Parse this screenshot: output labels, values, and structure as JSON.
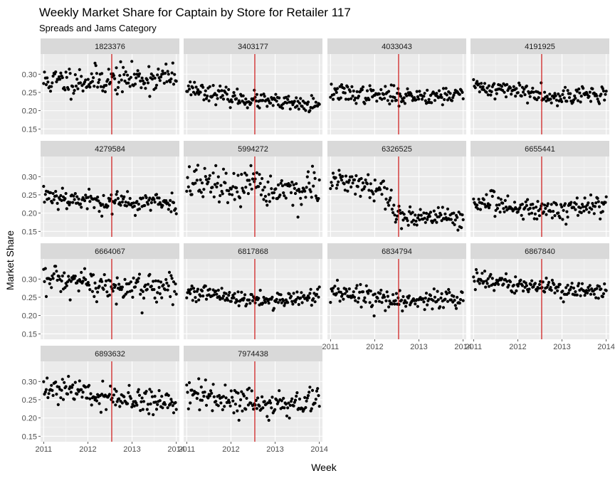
{
  "chart_data": {
    "type": "scatter",
    "title": "Weekly Market Share for Captain by Store for Retailer 117",
    "subtitle": "Spreads and Jams Category",
    "xlabel": "Week",
    "ylabel": "Market Share",
    "xlim": [
      2010.93,
      2014.07
    ],
    "ylim": [
      0.135,
      0.355
    ],
    "x_ticks": [
      2011,
      2012,
      2013,
      2014
    ],
    "x_tick_labels": [
      "2011",
      "2012",
      "2013",
      "2014"
    ],
    "y_ticks": [
      0.15,
      0.2,
      0.25,
      0.3
    ],
    "y_tick_labels": [
      "0.15",
      "0.20",
      "0.25",
      "0.30"
    ],
    "reference_line": {
      "x": 2012.54,
      "color": "#cc0000"
    },
    "point_color": "#000000",
    "grid": true,
    "facets": [
      "1823376",
      "3403177",
      "4033043",
      "4191925",
      "4279584",
      "5994272",
      "6326525",
      "6655441",
      "6664067",
      "6817868",
      "6834794",
      "6867840",
      "6893632",
      "7974438"
    ],
    "series": [
      {
        "name": "1823376",
        "base": [
          0.28,
          0.283,
          0.287,
          0.291
        ],
        "noise": 0.02,
        "seed": 11
      },
      {
        "name": "3403177",
        "base": [
          0.265,
          0.236,
          0.222,
          0.212
        ],
        "noise": 0.011,
        "seed": 23
      },
      {
        "name": "4033043",
        "base": [
          0.25,
          0.242,
          0.24,
          0.245
        ],
        "noise": 0.012,
        "seed": 37
      },
      {
        "name": "4191925",
        "base": [
          0.265,
          0.255,
          0.24,
          0.245
        ],
        "noise": 0.012,
        "seed": 41
      },
      {
        "name": "4279584",
        "base": [
          0.252,
          0.233,
          0.228,
          0.23
        ],
        "noise": 0.015,
        "seed": 53
      },
      {
        "name": "5994272",
        "base": [
          0.285,
          0.27,
          0.262,
          0.262
        ],
        "noise": 0.025,
        "seed": 67
      },
      {
        "name": "6326525",
        "base": [
          0.29,
          0.262,
          0.19,
          0.19
        ],
        "noise": 0.015,
        "seed": 79
      },
      {
        "name": "6655441",
        "base": [
          0.23,
          0.215,
          0.21,
          0.225
        ],
        "noise": 0.015,
        "seed": 83
      },
      {
        "name": "6664067",
        "base": [
          0.295,
          0.285,
          0.27,
          0.28
        ],
        "noise": 0.022,
        "seed": 97
      },
      {
        "name": "6817868",
        "base": [
          0.265,
          0.25,
          0.24,
          0.255
        ],
        "noise": 0.011,
        "seed": 101
      },
      {
        "name": "6834794",
        "base": [
          0.258,
          0.248,
          0.24,
          0.25
        ],
        "noise": 0.014,
        "seed": 113
      },
      {
        "name": "6867840",
        "base": [
          0.3,
          0.285,
          0.27,
          0.262
        ],
        "noise": 0.012,
        "seed": 127
      },
      {
        "name": "6893632",
        "base": [
          0.285,
          0.265,
          0.248,
          0.245
        ],
        "noise": 0.017,
        "seed": 131
      },
      {
        "name": "7974438",
        "base": [
          0.27,
          0.247,
          0.24,
          0.245
        ],
        "noise": 0.017,
        "seed": 139
      }
    ]
  }
}
